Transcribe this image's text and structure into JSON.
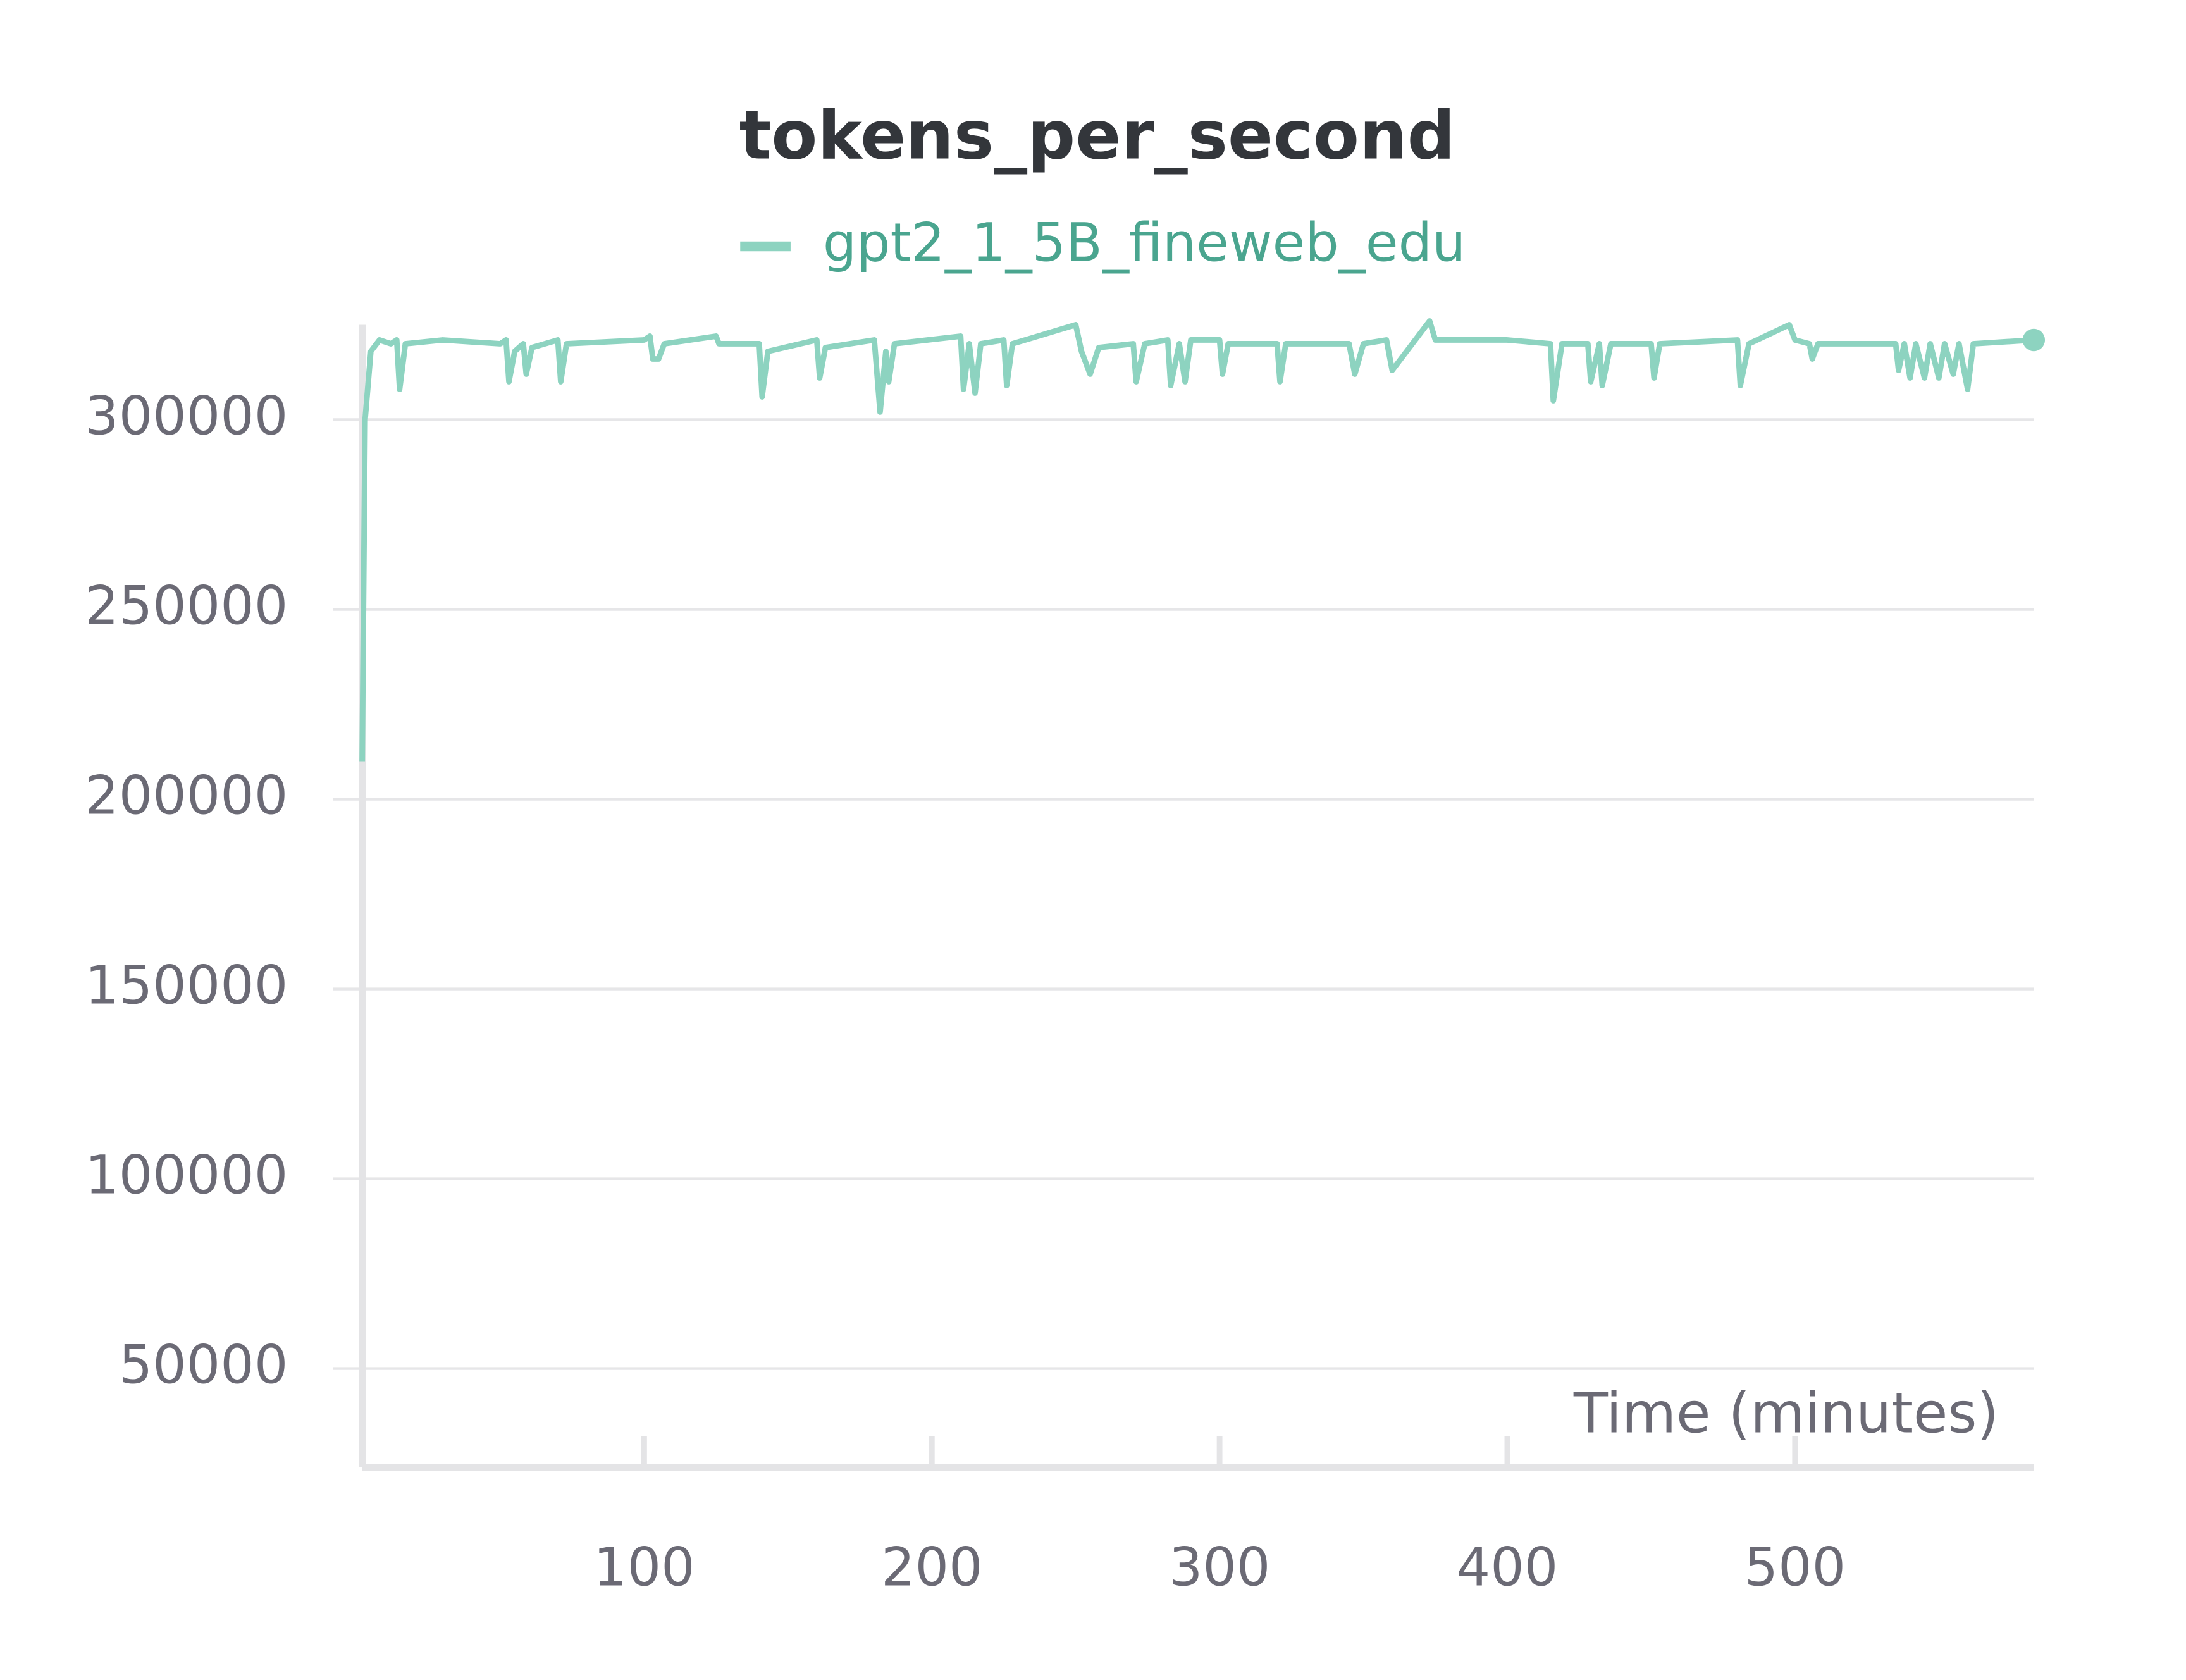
{
  "chart_data": {
    "type": "line",
    "title": "tokens_per_second",
    "x_label": "Time (minutes)",
    "legend_position": "top",
    "grid": true,
    "x": [
      2,
      3,
      5,
      8,
      12,
      14,
      15,
      17,
      30,
      50,
      52,
      53,
      55,
      58,
      59,
      61,
      70,
      71,
      73,
      100,
      102,
      103,
      105,
      107,
      125,
      126,
      140,
      141,
      143,
      160,
      161,
      163,
      180,
      182,
      184,
      185,
      187,
      210,
      211,
      213,
      215,
      217,
      225,
      226,
      228,
      250,
      252,
      255,
      258,
      270,
      271,
      274,
      282,
      283,
      286,
      288,
      290,
      300,
      301,
      303,
      320,
      321,
      323,
      345,
      347,
      350,
      358,
      360,
      373,
      375,
      400,
      415,
      416,
      419,
      428,
      429,
      432,
      433,
      436,
      450,
      451,
      453,
      480,
      481,
      484,
      498,
      500,
      505,
      506,
      508,
      520,
      535,
      536,
      538,
      540,
      542,
      545,
      547,
      550,
      552,
      555,
      557,
      560,
      562,
      583
    ],
    "series": [
      {
        "name": "gpt2_1_5B_fineweb_edu",
        "color": "#8dd3c0",
        "values": [
          210000,
          300000,
          318000,
          321000,
          320000,
          321000,
          308000,
          320000,
          321000,
          320000,
          321000,
          310000,
          318000,
          320000,
          312000,
          319000,
          321000,
          310000,
          320000,
          321000,
          322000,
          316000,
          316000,
          320000,
          322000,
          320000,
          320000,
          306000,
          318000,
          321000,
          311000,
          319000,
          321000,
          302000,
          318000,
          310000,
          320000,
          322000,
          308000,
          320000,
          307000,
          320000,
          321000,
          309000,
          320000,
          325000,
          318000,
          312000,
          319000,
          320000,
          310000,
          320000,
          321000,
          309000,
          320000,
          310000,
          321000,
          321000,
          312000,
          320000,
          320000,
          310000,
          320000,
          320000,
          312000,
          320000,
          321000,
          313000,
          326000,
          321000,
          321000,
          320000,
          305000,
          320000,
          320000,
          310000,
          320000,
          309000,
          320000,
          320000,
          311000,
          320000,
          321000,
          309000,
          320000,
          325000,
          321000,
          320000,
          316000,
          320000,
          320000,
          320000,
          313000,
          320000,
          311000,
          320000,
          311000,
          320000,
          311000,
          320000,
          312000,
          320000,
          308000,
          320000,
          321000
        ]
      }
    ],
    "xlim": [
      2,
      583
    ],
    "ylim": [
      24000,
      325000
    ],
    "xticks": [
      100,
      200,
      300,
      400,
      500
    ],
    "yticks": [
      50000,
      100000,
      150000,
      200000,
      250000,
      300000
    ]
  }
}
